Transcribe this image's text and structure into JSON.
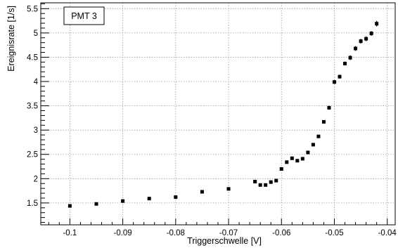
{
  "chart_data": {
    "type": "scatter",
    "legend_text": "PMT 3",
    "legend_placement": "top-left",
    "xlabel": "Triggerschwelle [V]",
    "ylabel": "Ereignisrate [1/s]",
    "xlim": [
      -0.1055,
      -0.0385
    ],
    "ylim": [
      1.05,
      5.62
    ],
    "x_ticks": [
      -0.1,
      -0.09,
      -0.08,
      -0.07,
      -0.06,
      -0.05,
      -0.04
    ],
    "x_tick_labels": [
      "-0.1",
      "-0.09",
      "-0.08",
      "-0.07",
      "-0.06",
      "-0.05",
      "-0.04"
    ],
    "y_ticks": [
      1.5,
      2,
      2.5,
      3,
      3.5,
      4,
      4.5,
      5,
      5.5
    ],
    "y_tick_labels": [
      "1.5",
      "2",
      "2.5",
      "3",
      "3.5",
      "4",
      "4.5",
      "5",
      "5.5"
    ],
    "grid": true,
    "marker_color": "#000000",
    "series": [
      {
        "x": [
          -0.1,
          -0.095,
          -0.09,
          -0.085,
          -0.08,
          -0.075,
          -0.07,
          -0.065,
          -0.064,
          -0.063,
          -0.062,
          -0.061,
          -0.06,
          -0.059,
          -0.058,
          -0.057,
          -0.056,
          -0.055,
          -0.054,
          -0.053,
          -0.052,
          -0.051,
          -0.05,
          -0.049,
          -0.048,
          -0.047,
          -0.046,
          -0.045,
          -0.044,
          -0.043,
          -0.042
        ],
        "y": [
          1.44,
          1.48,
          1.54,
          1.59,
          1.62,
          1.73,
          1.79,
          1.94,
          1.87,
          1.87,
          1.93,
          1.96,
          2.2,
          2.34,
          2.42,
          2.37,
          2.41,
          2.54,
          2.7,
          2.87,
          3.17,
          3.46,
          3.99,
          4.1,
          4.37,
          4.49,
          4.68,
          4.83,
          4.88,
          4.99,
          5.19
        ],
        "yerr": [
          0.02,
          0.02,
          0.02,
          0.02,
          0.02,
          0.02,
          0.02,
          0.02,
          0.02,
          0.02,
          0.02,
          0.02,
          0.03,
          0.03,
          0.03,
          0.03,
          0.03,
          0.03,
          0.03,
          0.03,
          0.03,
          0.04,
          0.04,
          0.04,
          0.04,
          0.05,
          0.05,
          0.05,
          0.05,
          0.05,
          0.06
        ]
      }
    ]
  }
}
